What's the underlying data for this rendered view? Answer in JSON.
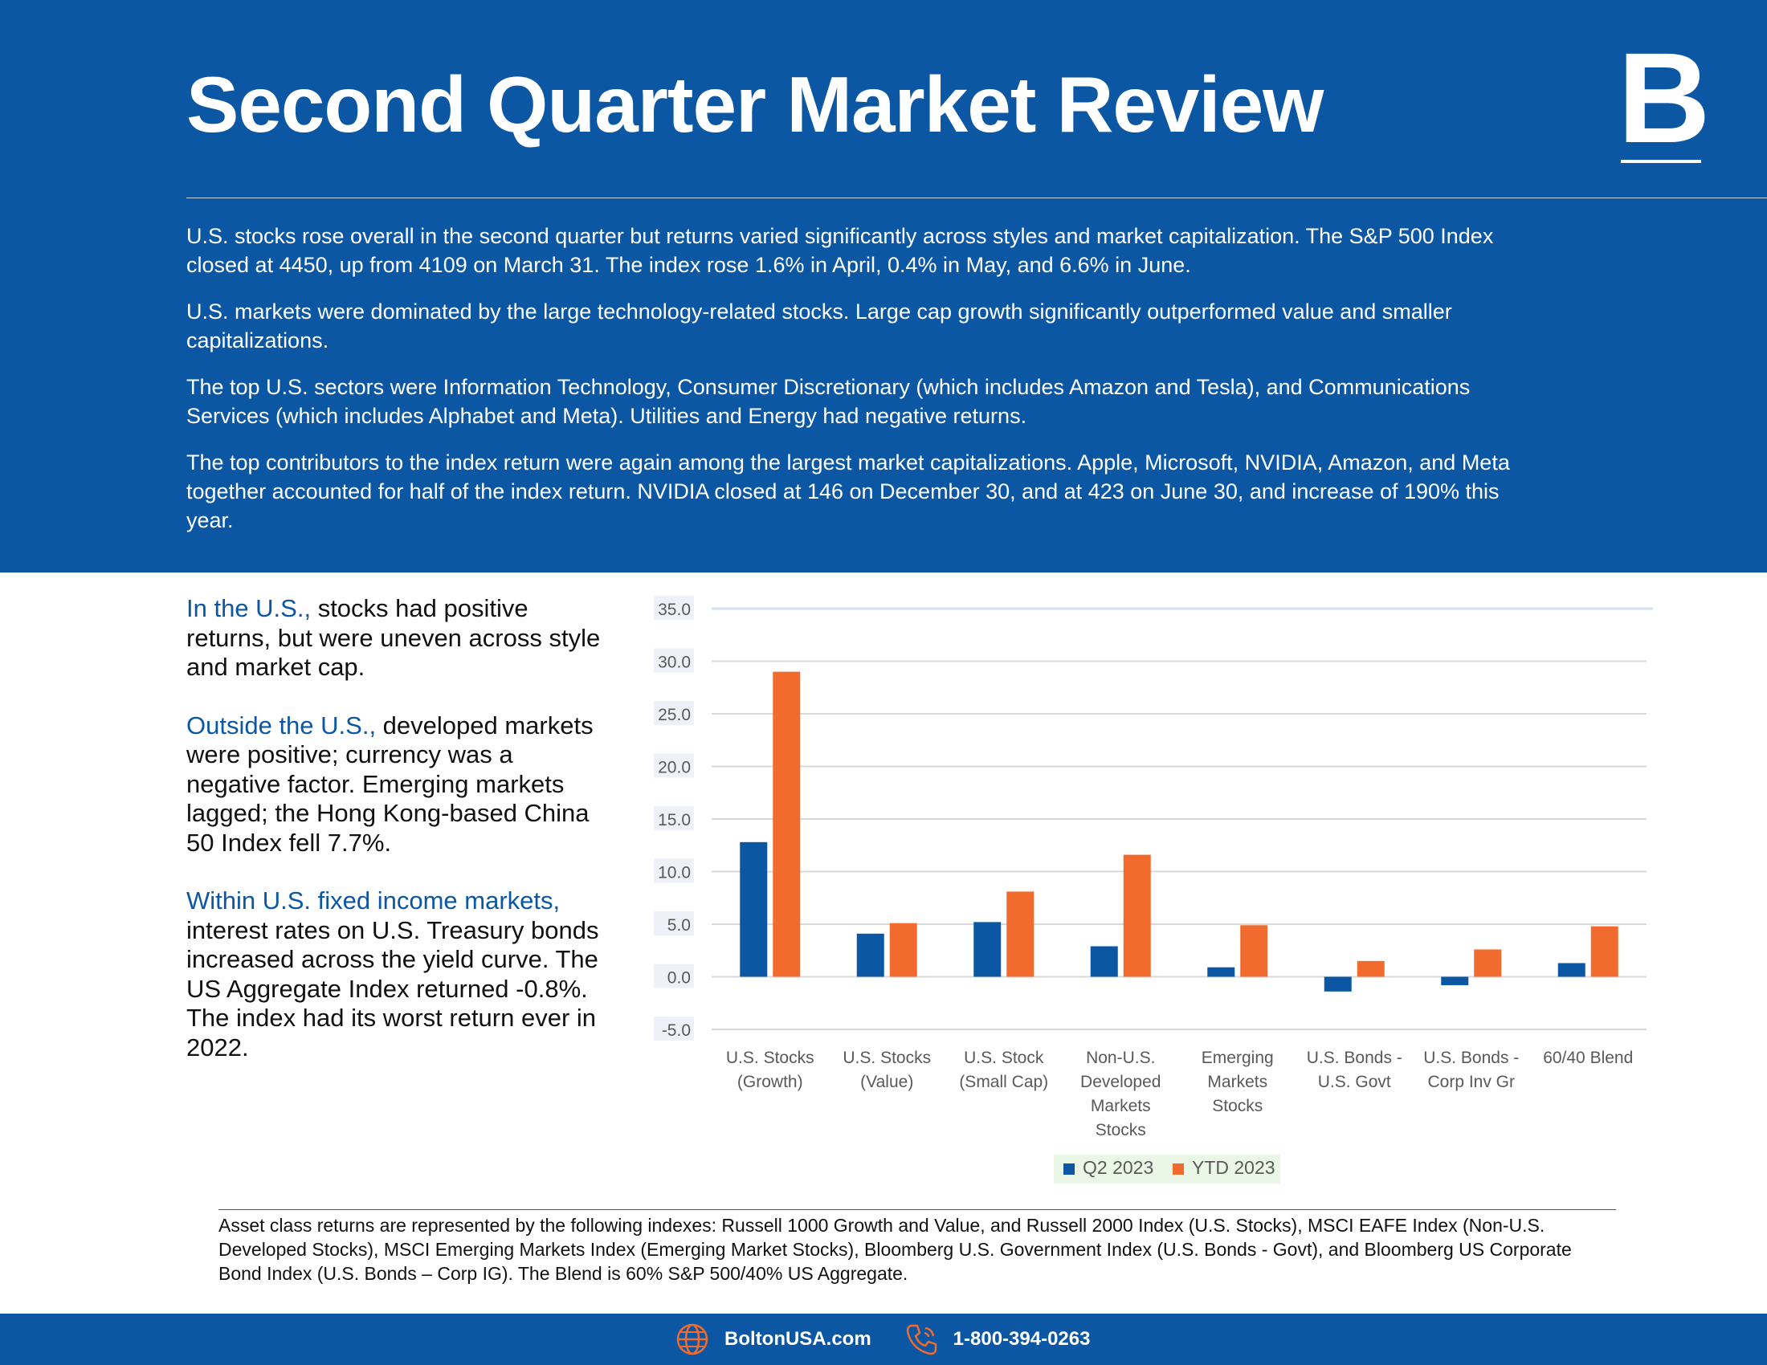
{
  "header": {
    "title": "Second Quarter Market Review",
    "logo_letter": "B",
    "paragraphs": [
      "U.S. stocks rose overall in the second quarter but returns varied significantly across styles and market capitalization.  The S&P 500 Index closed at 4450, up from 4109 on March 31.  The index rose 1.6% in April, 0.4% in May, and 6.6% in June.",
      "U.S. markets were dominated by the large technology-related stocks.  Large cap growth significantly outperformed value and smaller capitalizations.",
      "The top U.S. sectors were Information Technology, Consumer Discretionary (which includes Amazon and Tesla), and Communications Services (which includes Alphabet and Meta).  Utilities and Energy had negative returns.",
      "The top contributors to the index return were again among the largest market capitalizations.  Apple, Microsoft, NVIDIA, Amazon, and Meta together accounted for half of the index return.  NVIDIA closed at 146 on December 30, and at 423 on June 30, and increase of 190% this year."
    ]
  },
  "sidebar": [
    {
      "lead": "In the U.S.,",
      "text": " stocks had positive returns, but were uneven across style and market cap."
    },
    {
      "lead": "Outside the U.S.,",
      "text": " developed markets were positive; currency was a negative factor. Emerging markets lagged; the Hong Kong-based China 50 Index fell 7.7%."
    },
    {
      "lead": "Within U.S. fixed income markets,",
      "text": " interest rates on U.S. Treasury bonds increased across the yield curve. The US Aggregate Index returned -0.8%.  The index had its worst return ever in 2022."
    }
  ],
  "chart_data": {
    "type": "bar",
    "categories": [
      [
        "U.S. Stocks",
        "(Growth)"
      ],
      [
        "U.S. Stocks",
        "(Value)"
      ],
      [
        "U.S. Stock",
        "(Small Cap)"
      ],
      [
        "Non-U.S.",
        "Developed",
        "Markets",
        "Stocks"
      ],
      [
        "Emerging",
        "Markets",
        "Stocks"
      ],
      [
        "U.S. Bonds -",
        "U.S. Govt"
      ],
      [
        "U.S. Bonds -",
        "Corp Inv Gr"
      ],
      [
        "60/40 Blend"
      ]
    ],
    "series": [
      {
        "name": "Q2 2023",
        "color": "#0b57a4",
        "values": [
          12.8,
          4.1,
          5.2,
          2.9,
          0.9,
          -1.4,
          -0.8,
          1.3
        ]
      },
      {
        "name": "YTD 2023",
        "color": "#f26b2e",
        "values": [
          29.0,
          5.1,
          8.1,
          11.6,
          4.9,
          1.5,
          2.6,
          4.8
        ]
      }
    ],
    "yticks": [
      "35.0",
      "30.0",
      "25.0",
      "20.0",
      "15.0",
      "10.0",
      "5.0",
      "0.0",
      "-5.0"
    ],
    "ylim": [
      -5,
      35
    ],
    "grid": true,
    "legend": "bottom"
  },
  "notes": "Asset class returns are represented by the following indexes: Russell 1000 Growth and Value, and Russell 2000 Index (U.S. Stocks), MSCI EAFE Index (Non-U.S. Developed Stocks), MSCI Emerging Markets Index (Emerging Market Stocks), Bloomberg U.S. Government Index (U.S. Bonds - Govt), and Bloomberg US Corporate Bond Index (U.S. Bonds – Corp IG).  The Blend is 60% S&P 500/40% US Aggregate.",
  "footer": {
    "website": "BoltonUSA.com",
    "phone": "1-800-394-0263",
    "icons": [
      "globe-icon",
      "phone-icon"
    ]
  }
}
